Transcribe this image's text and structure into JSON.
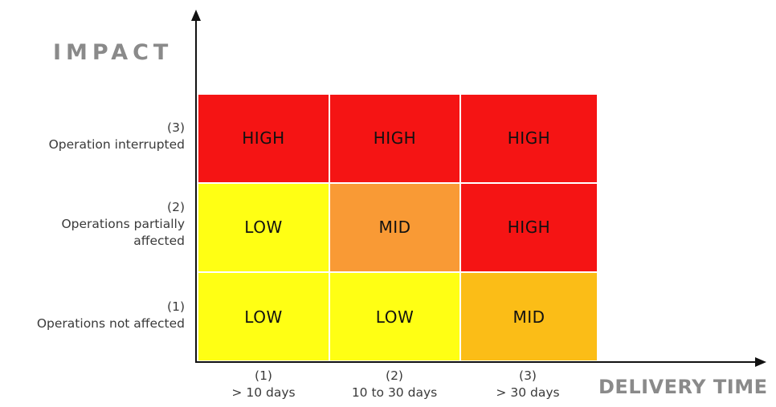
{
  "y_axis": {
    "title": "IMPACT"
  },
  "x_axis": {
    "title": "DELIVERY TIME"
  },
  "rows": [
    {
      "number": "(3)",
      "lines": [
        "Operation interrupted"
      ]
    },
    {
      "number": "(2)",
      "lines": [
        "Operations partially",
        "affected"
      ]
    },
    {
      "number": "(1)",
      "lines": [
        "Operations not affected"
      ]
    }
  ],
  "columns": [
    {
      "number": "(1)",
      "label": "> 10 days"
    },
    {
      "number": "(2)",
      "label": "10 to 30 days"
    },
    {
      "number": "(3)",
      "label": "> 30 days"
    }
  ],
  "cells": [
    [
      {
        "label": "HIGH",
        "color": "#f51414"
      },
      {
        "label": "HIGH",
        "color": "#f51414"
      },
      {
        "label": "HIGH",
        "color": "#f51414"
      }
    ],
    [
      {
        "label": "LOW",
        "color": "#ffff14"
      },
      {
        "label": "MID",
        "color": "#f99a35"
      },
      {
        "label": "HIGH",
        "color": "#f51414"
      }
    ],
    [
      {
        "label": "LOW",
        "color": "#ffff14"
      },
      {
        "label": "LOW",
        "color": "#ffff14"
      },
      {
        "label": "MID",
        "color": "#fbbd17"
      }
    ]
  ]
}
